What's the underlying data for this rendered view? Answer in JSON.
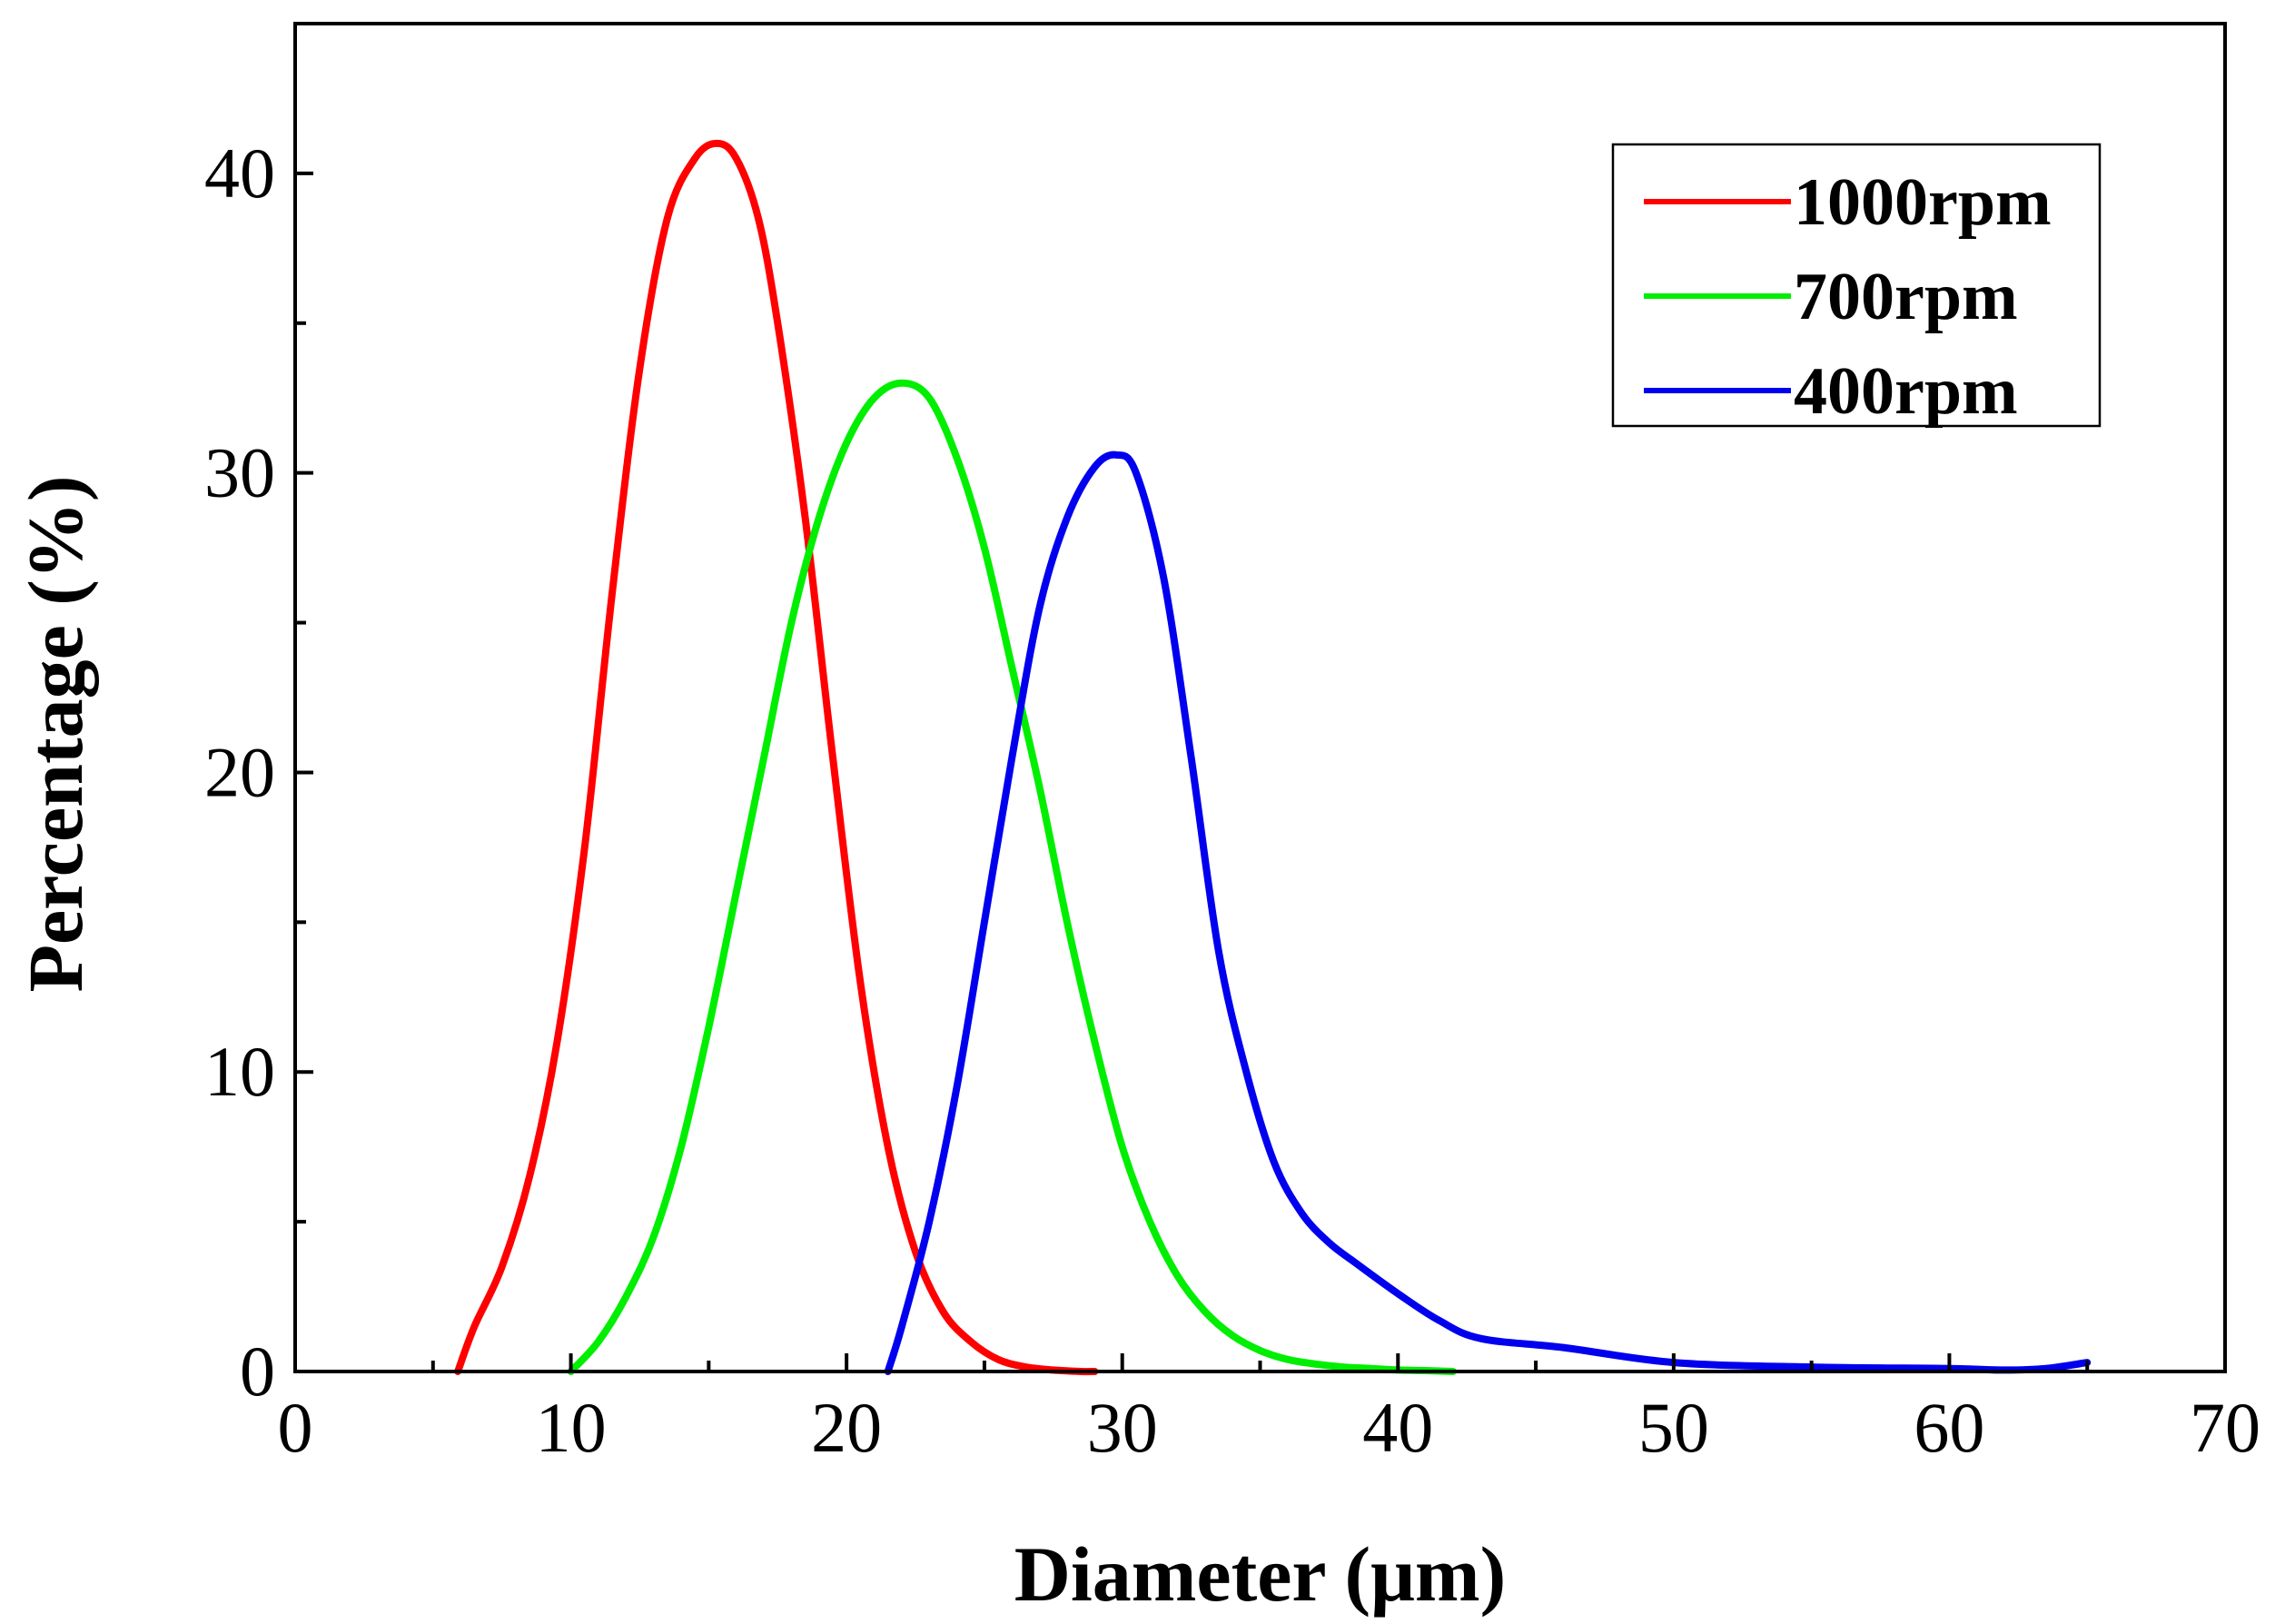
{
  "chart_data": {
    "type": "line",
    "title": "",
    "xlabel": "Diameter (μm)",
    "ylabel": "Percentage (%)",
    "xlim": [
      0,
      70
    ],
    "ylim": [
      0,
      45
    ],
    "xticks": [
      0,
      10,
      20,
      30,
      40,
      50,
      60,
      70
    ],
    "xtick_labels": [
      "0",
      "10",
      "20",
      "30",
      "40",
      "50",
      "60",
      "70"
    ],
    "yticks": [
      0,
      10,
      20,
      30,
      40
    ],
    "ytick_labels": [
      "0",
      "10",
      "20",
      "30",
      "40"
    ],
    "grid": false,
    "legend_position": "top-right",
    "series": [
      {
        "name": "1000rpm",
        "color": "#ff0000",
        "x": [
          5.9,
          6.5,
          7.5,
          8.5,
          9.5,
          10.5,
          11.5,
          12.5,
          13.5,
          14.5,
          15.3,
          16.0,
          16.8,
          17.5,
          18.5,
          19.5,
          20.5,
          21.5,
          22.5,
          23.5,
          24.5,
          25.5,
          26.5,
          27.5,
          28.5,
          29.0
        ],
        "y": [
          0,
          1.5,
          3.5,
          6.5,
          11,
          17.5,
          26,
          33.5,
          38.5,
          40.5,
          41,
          40.5,
          38.5,
          35,
          28.5,
          20.5,
          13,
          7.5,
          4,
          2,
          1,
          0.4,
          0.15,
          0.05,
          0,
          0
        ]
      },
      {
        "name": "700rpm",
        "color": "#00ee00",
        "x": [
          10.0,
          11.0,
          12.0,
          13.0,
          14.0,
          15.0,
          16.0,
          17.0,
          18.0,
          19.0,
          20.0,
          21.0,
          22.0,
          23.0,
          24.0,
          25.0,
          26.0,
          27.0,
          28.0,
          29.0,
          30.0,
          31.0,
          32.0,
          33.0,
          34.0,
          35.0,
          36.0,
          37.0,
          38.0,
          39.0,
          40.0,
          41.0,
          42.0
        ],
        "y": [
          0,
          1,
          2.5,
          4.5,
          7.5,
          11.5,
          16,
          20.5,
          25,
          28.5,
          31,
          32.5,
          33,
          32.5,
          30.5,
          27.5,
          23.5,
          19.5,
          15,
          11,
          7.5,
          5,
          3.2,
          2,
          1.2,
          0.7,
          0.4,
          0.25,
          0.15,
          0.1,
          0.05,
          0.03,
          0
        ]
      },
      {
        "name": "400rpm",
        "color": "#0000ee",
        "x": [
          21.5,
          22.0,
          23.0,
          24.0,
          25.0,
          26.0,
          27.0,
          28.0,
          29.0,
          29.8,
          30.5,
          31.5,
          32.5,
          33.5,
          34.5,
          35.5,
          36.5,
          37.5,
          38.5,
          40.0,
          41.5,
          43.0,
          46.0,
          50.0,
          55.0,
          60.0,
          62.0,
          63.5,
          65.0
        ],
        "y": [
          0,
          1.5,
          5,
          9.5,
          15,
          20.5,
          25.5,
          28.5,
          30.2,
          30.6,
          30,
          26.5,
          20.5,
          14,
          10,
          7,
          5.3,
          4.3,
          3.6,
          2.6,
          1.7,
          1.1,
          0.8,
          0.3,
          0.15,
          0.1,
          0.05,
          0.1,
          0.3
        ]
      }
    ]
  }
}
